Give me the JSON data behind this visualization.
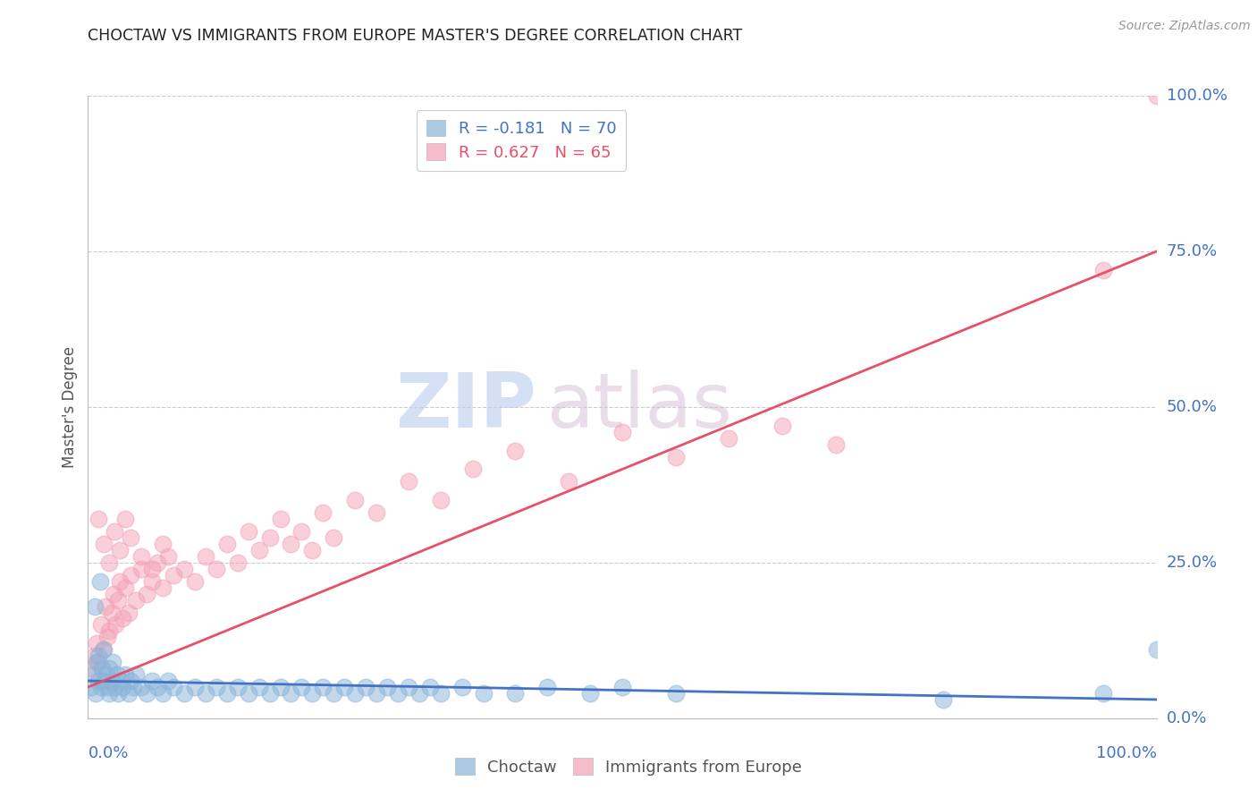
{
  "title": "CHOCTAW VS IMMIGRANTS FROM EUROPE MASTER'S DEGREE CORRELATION CHART",
  "source": "Source: ZipAtlas.com",
  "ylabel": "Master's Degree",
  "ytick_labels": [
    "0.0%",
    "25.0%",
    "50.0%",
    "75.0%",
    "100.0%"
  ],
  "ytick_values": [
    0,
    25,
    50,
    75,
    100
  ],
  "xlim": [
    0,
    100
  ],
  "ylim": [
    0,
    100
  ],
  "choctaw_color": "#89b4d9",
  "europe_color": "#f4a0b5",
  "choctaw_line_color": "#4472c4",
  "europe_line_color": "#e8506a",
  "axis_label_color": "#4472c4",
  "background_color": "#ffffff",
  "grid_color": "#cccccc",
  "watermark_zip_color": "#c8d8ee",
  "watermark_atlas_color": "#d8c8d8",
  "choctaw_scatter_x": [
    0.3,
    0.5,
    0.7,
    0.8,
    1.0,
    1.0,
    1.2,
    1.3,
    1.5,
    1.5,
    1.7,
    1.8,
    2.0,
    2.0,
    2.2,
    2.3,
    2.5,
    2.7,
    2.8,
    3.0,
    3.2,
    3.5,
    3.8,
    4.0,
    4.2,
    4.5,
    5.0,
    5.5,
    6.0,
    6.5,
    7.0,
    7.5,
    8.0,
    9.0,
    10.0,
    11.0,
    12.0,
    13.0,
    14.0,
    15.0,
    16.0,
    17.0,
    18.0,
    19.0,
    20.0,
    21.0,
    22.0,
    23.0,
    24.0,
    25.0,
    26.0,
    27.0,
    28.0,
    29.0,
    30.0,
    31.0,
    32.0,
    33.0,
    35.0,
    37.0,
    40.0,
    43.0,
    47.0,
    50.0,
    55.0,
    80.0,
    95.0,
    100.0,
    0.6,
    1.1
  ],
  "choctaw_scatter_y": [
    5.0,
    7.0,
    4.0,
    9.0,
    6.0,
    10.0,
    5.0,
    8.0,
    6.0,
    11.0,
    7.0,
    5.0,
    8.0,
    4.0,
    6.0,
    9.0,
    5.0,
    7.0,
    4.0,
    6.0,
    5.0,
    7.0,
    4.0,
    6.0,
    5.0,
    7.0,
    5.0,
    4.0,
    6.0,
    5.0,
    4.0,
    6.0,
    5.0,
    4.0,
    5.0,
    4.0,
    5.0,
    4.0,
    5.0,
    4.0,
    5.0,
    4.0,
    5.0,
    4.0,
    5.0,
    4.0,
    5.0,
    4.0,
    5.0,
    4.0,
    5.0,
    4.0,
    5.0,
    4.0,
    5.0,
    4.0,
    5.0,
    4.0,
    5.0,
    4.0,
    4.0,
    5.0,
    4.0,
    5.0,
    4.0,
    3.0,
    4.0,
    11.0,
    18.0,
    22.0
  ],
  "europe_scatter_x": [
    0.4,
    0.6,
    0.8,
    1.0,
    1.2,
    1.4,
    1.6,
    1.8,
    2.0,
    2.2,
    2.4,
    2.6,
    2.8,
    3.0,
    3.2,
    3.5,
    3.8,
    4.0,
    4.5,
    5.0,
    5.5,
    6.0,
    6.5,
    7.0,
    7.5,
    8.0,
    9.0,
    10.0,
    11.0,
    12.0,
    13.0,
    14.0,
    15.0,
    16.0,
    17.0,
    18.0,
    19.0,
    20.0,
    21.0,
    22.0,
    23.0,
    25.0,
    27.0,
    30.0,
    33.0,
    36.0,
    40.0,
    45.0,
    50.0,
    55.0,
    60.0,
    65.0,
    70.0,
    1.0,
    1.5,
    2.0,
    2.5,
    3.0,
    3.5,
    4.0,
    5.0,
    6.0,
    7.0,
    100.0,
    95.0
  ],
  "europe_scatter_y": [
    8.0,
    10.0,
    12.0,
    9.0,
    15.0,
    11.0,
    18.0,
    13.0,
    14.0,
    17.0,
    20.0,
    15.0,
    19.0,
    22.0,
    16.0,
    21.0,
    17.0,
    23.0,
    19.0,
    24.0,
    20.0,
    22.0,
    25.0,
    21.0,
    26.0,
    23.0,
    24.0,
    22.0,
    26.0,
    24.0,
    28.0,
    25.0,
    30.0,
    27.0,
    29.0,
    32.0,
    28.0,
    30.0,
    27.0,
    33.0,
    29.0,
    35.0,
    33.0,
    38.0,
    35.0,
    40.0,
    43.0,
    38.0,
    46.0,
    42.0,
    45.0,
    47.0,
    44.0,
    32.0,
    28.0,
    25.0,
    30.0,
    27.0,
    32.0,
    29.0,
    26.0,
    24.0,
    28.0,
    100.0,
    72.0
  ]
}
